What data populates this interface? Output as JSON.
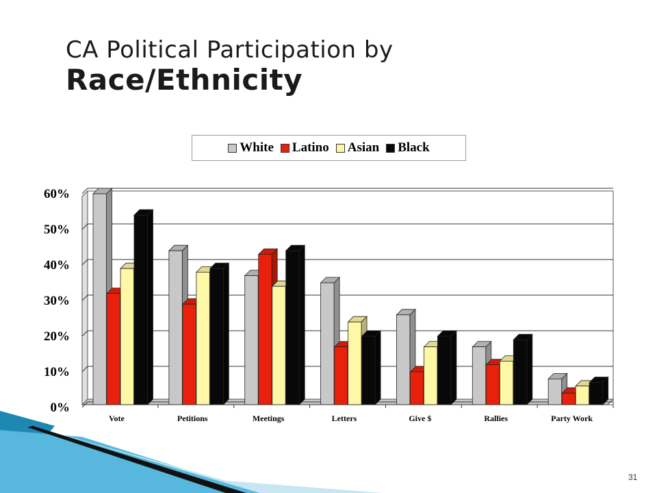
{
  "slide": {
    "title_line1": "CA Political Participation by",
    "title_line2": "Race/Ethnicity",
    "page_number": "31"
  },
  "colors": {
    "White": "#c8c8c8",
    "Latino": "#e8210c",
    "Asian": "#fdf7a6",
    "Black": "#080808",
    "decor_blue": "#2d9cc4",
    "decor_blue_light": "#8fd0e8"
  },
  "chart_data": {
    "type": "bar",
    "title": "",
    "xlabel": "",
    "ylabel": "",
    "ylim": [
      0,
      60
    ],
    "yticks": [
      "0%",
      "10%",
      "20%",
      "30%",
      "40%",
      "50%",
      "60%"
    ],
    "grid": true,
    "legend_position": "top",
    "categories": [
      "Vote",
      "Petitions",
      "Meetings",
      "Letters",
      "Give $",
      "Rallies",
      "Party Work"
    ],
    "series": [
      {
        "name": "White",
        "values": [
          60,
          44,
          37,
          35,
          26,
          17,
          8
        ]
      },
      {
        "name": "Latino",
        "values": [
          32,
          29,
          43,
          17,
          10,
          12,
          4
        ]
      },
      {
        "name": "Asian",
        "values": [
          39,
          38,
          34,
          24,
          17,
          13,
          6
        ]
      },
      {
        "name": "Black",
        "values": [
          54,
          39,
          44,
          20,
          20,
          19,
          7
        ]
      }
    ]
  }
}
